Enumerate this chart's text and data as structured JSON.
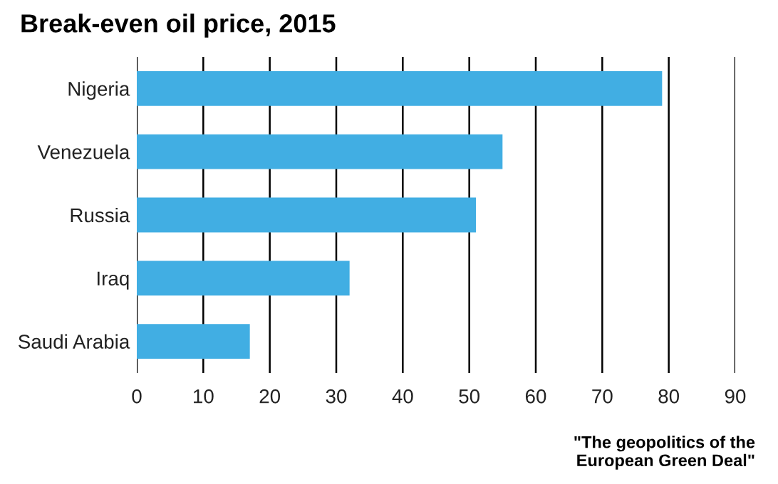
{
  "chart_data": {
    "type": "bar",
    "orientation": "horizontal",
    "title": "Break-even oil price, 2015",
    "categories": [
      "Nigeria",
      "Venezuela",
      "Russia",
      "Iraq",
      "Saudi Arabia"
    ],
    "values": [
      79,
      55,
      51,
      32,
      17
    ],
    "color": "#41aee3",
    "xlim": [
      0,
      90
    ],
    "xticks": [
      0,
      10,
      20,
      30,
      40,
      50,
      60,
      70,
      80,
      90
    ],
    "grid": "x",
    "legend": false,
    "annotations": [
      "\"The geopolitics of the\nEuropean Green Deal\""
    ]
  }
}
